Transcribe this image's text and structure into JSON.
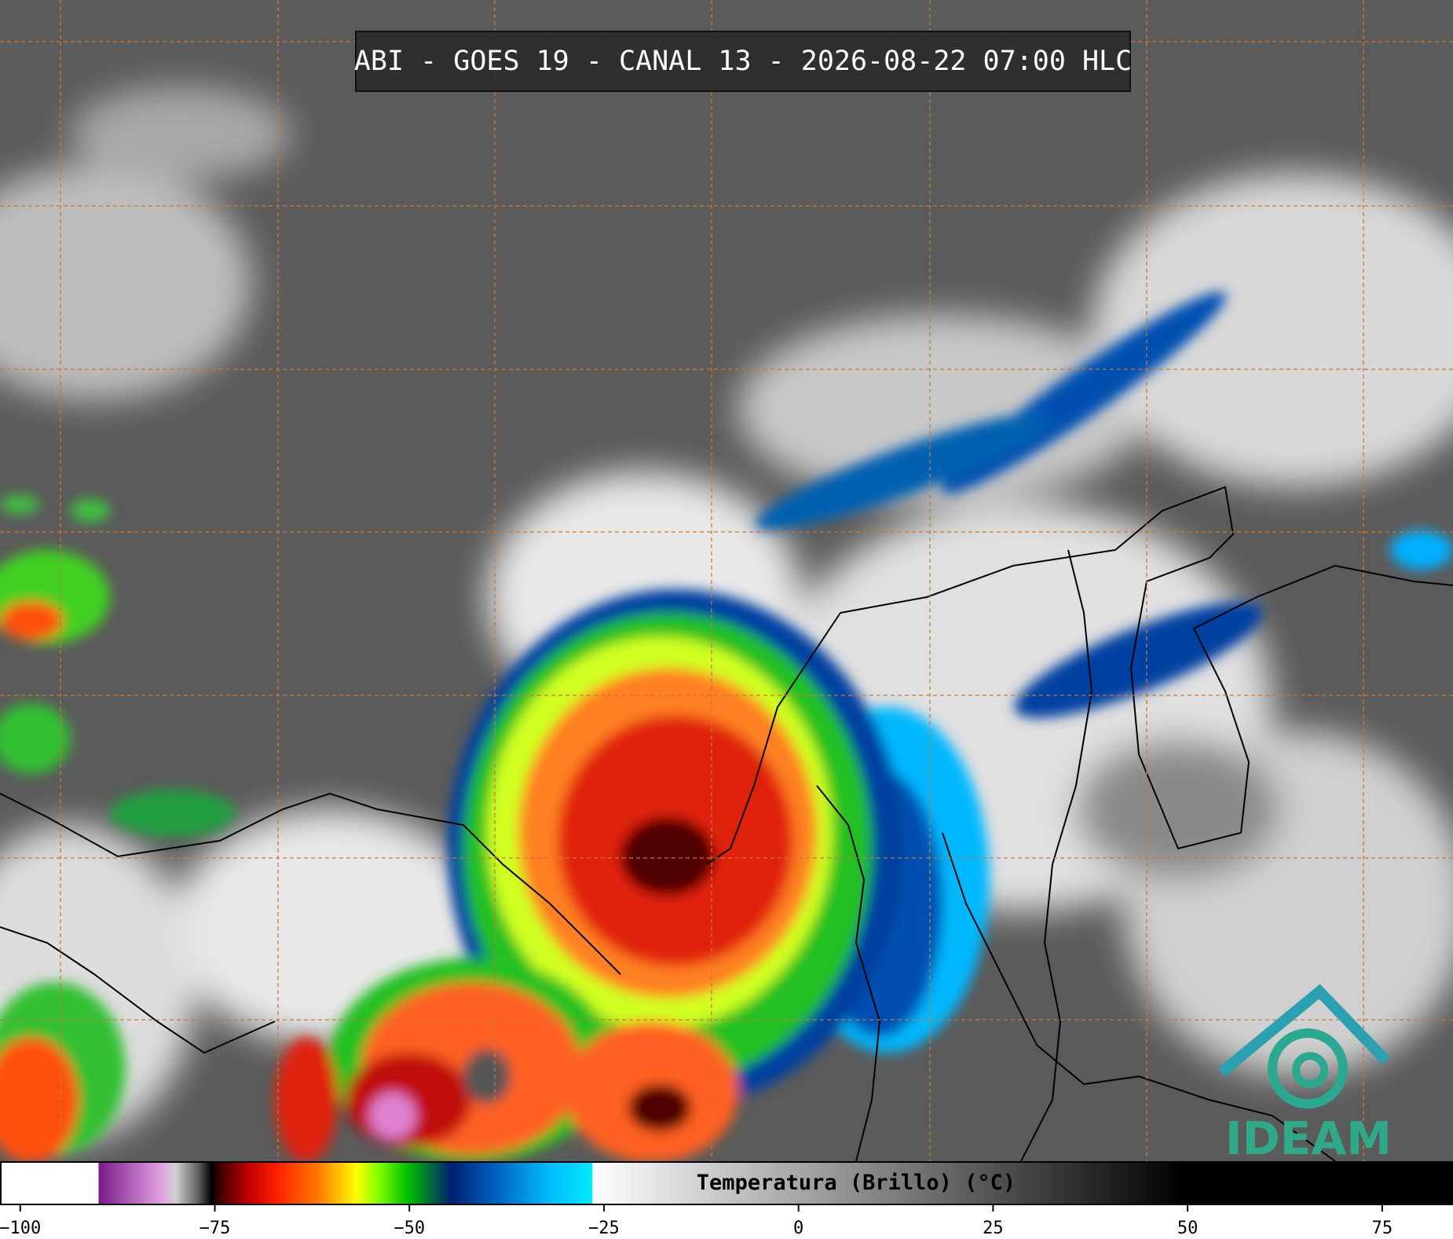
{
  "title": "ABI - GOES 19 - CANAL 13 - 2026-08-22 07:00 HLC",
  "colorbar": {
    "label": "Temperatura (Brillo) (°C)",
    "xlim": [
      -102.6,
      84.1
    ],
    "ticks": [
      {
        "value": -100,
        "label": "−100"
      },
      {
        "value": -75,
        "label": "−75"
      },
      {
        "value": -50,
        "label": "−50"
      },
      {
        "value": -25,
        "label": "−25"
      },
      0,
      25,
      50,
      75
    ]
  },
  "logo": "IDEAM"
}
